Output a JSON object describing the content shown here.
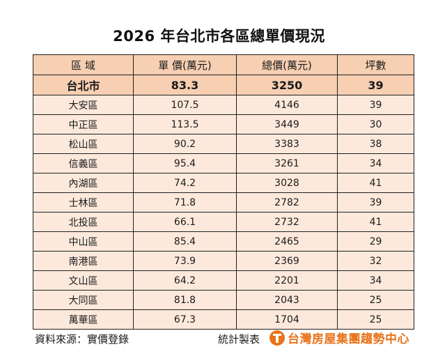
{
  "title": "2026 年台北市各區總單價現況",
  "table": {
    "headers": [
      "區 域",
      "單 價(萬元)",
      "總價(萬元)",
      "坪數"
    ],
    "total": {
      "district": "台北市",
      "unit_price": "83.3",
      "total_price": "3250",
      "area": "39"
    },
    "rows": [
      {
        "district": "大安區",
        "unit_price": "107.5",
        "total_price": "4146",
        "area": "39"
      },
      {
        "district": "中正區",
        "unit_price": "113.5",
        "total_price": "3449",
        "area": "30"
      },
      {
        "district": "松山區",
        "unit_price": "90.2",
        "total_price": "3383",
        "area": "38"
      },
      {
        "district": "信義區",
        "unit_price": "95.4",
        "total_price": "3261",
        "area": "34"
      },
      {
        "district": "內湖區",
        "unit_price": "74.2",
        "total_price": "3028",
        "area": "41"
      },
      {
        "district": "士林區",
        "unit_price": "71.8",
        "total_price": "2782",
        "area": "39"
      },
      {
        "district": "北投區",
        "unit_price": "66.1",
        "total_price": "2732",
        "area": "41"
      },
      {
        "district": "中山區",
        "unit_price": "85.4",
        "total_price": "2465",
        "area": "29"
      },
      {
        "district": "南港區",
        "unit_price": "73.9",
        "total_price": "2369",
        "area": "32"
      },
      {
        "district": "文山區",
        "unit_price": "64.2",
        "total_price": "2201",
        "area": "34"
      },
      {
        "district": "大同區",
        "unit_price": "81.8",
        "total_price": "2043",
        "area": "25"
      },
      {
        "district": "萬華區",
        "unit_price": "67.3",
        "total_price": "1704",
        "area": "25"
      }
    ]
  },
  "footer": {
    "source": "資料來源：實價登錄",
    "compiled": "統計製表",
    "logo_icon": "brand-logo-icon",
    "logo_text": "台灣房屋集團趨勢中心"
  },
  "colors": {
    "header_bg": "#f7cfb2",
    "row_bg": "#fde9dc",
    "brand": "#e8731a"
  }
}
